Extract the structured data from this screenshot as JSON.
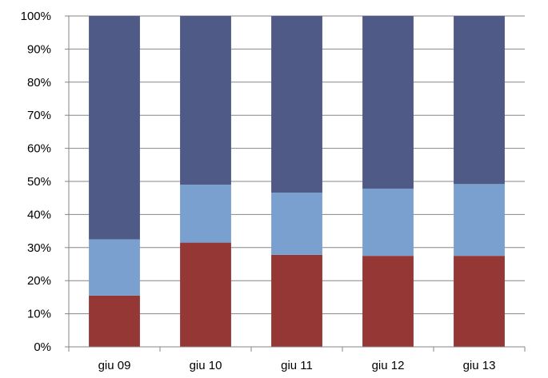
{
  "chart_data": {
    "type": "bar",
    "stacked": true,
    "percent_stacked": true,
    "categories": [
      "giu 09",
      "giu 10",
      "giu 11",
      "giu 12",
      "giu 13"
    ],
    "series": [
      {
        "color": "#953735",
        "values": [
          15.5,
          31.5,
          27.8,
          27.5,
          27.5
        ]
      },
      {
        "color": "#7aa0cf",
        "values": [
          17.0,
          17.5,
          18.8,
          20.3,
          21.7
        ]
      },
      {
        "color": "#4f5a86",
        "values": [
          67.5,
          51.0,
          53.4,
          52.2,
          50.8
        ]
      }
    ],
    "y_ticks": [
      "0%",
      "10%",
      "20%",
      "30%",
      "40%",
      "50%",
      "60%",
      "70%",
      "80%",
      "90%",
      "100%"
    ],
    "ylim": [
      0,
      100
    ],
    "grid": true,
    "legend": "none"
  }
}
